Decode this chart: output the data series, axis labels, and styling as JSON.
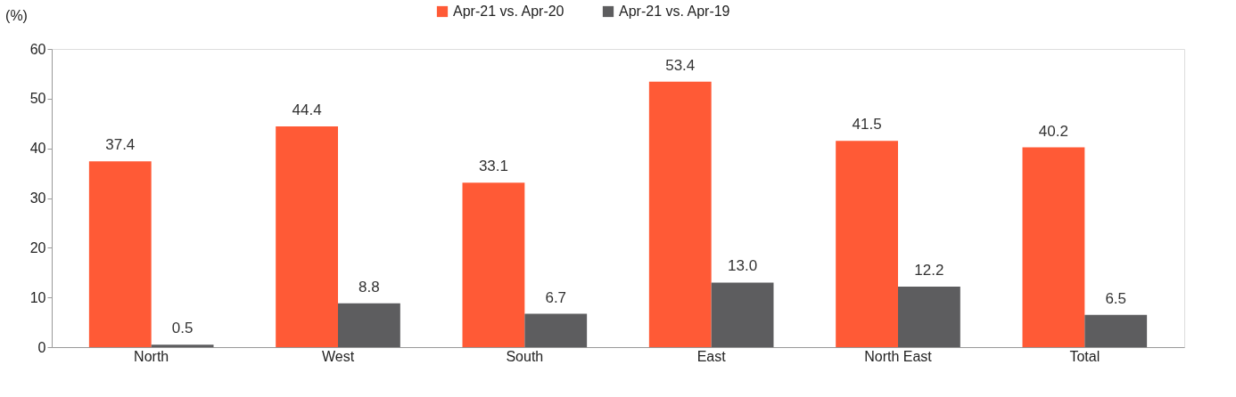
{
  "chart_data": {
    "type": "bar",
    "ylabel": "(%)",
    "categories": [
      "North",
      "West",
      "South",
      "East",
      "North East",
      "Total"
    ],
    "series": [
      {
        "name": "Apr-21 vs. Apr-20",
        "color": "#ff5a36",
        "values": [
          37.4,
          44.4,
          33.1,
          53.4,
          41.5,
          40.2
        ],
        "value_labels": [
          "37.4",
          "44.4",
          "33.1",
          "53.4",
          "41.5",
          "40.2"
        ]
      },
      {
        "name": "Apr-21 vs. Apr-19",
        "color": "#5d5d5f",
        "values": [
          0.5,
          8.8,
          6.7,
          13.0,
          12.2,
          6.5
        ],
        "value_labels": [
          "0.5",
          "8.8",
          "6.7",
          "13.0",
          "12.2",
          "6.5"
        ]
      }
    ],
    "ylim": [
      0,
      60
    ],
    "yticks": [
      0,
      10,
      20,
      30,
      40,
      50,
      60
    ],
    "grid": false,
    "legend": "top"
  }
}
